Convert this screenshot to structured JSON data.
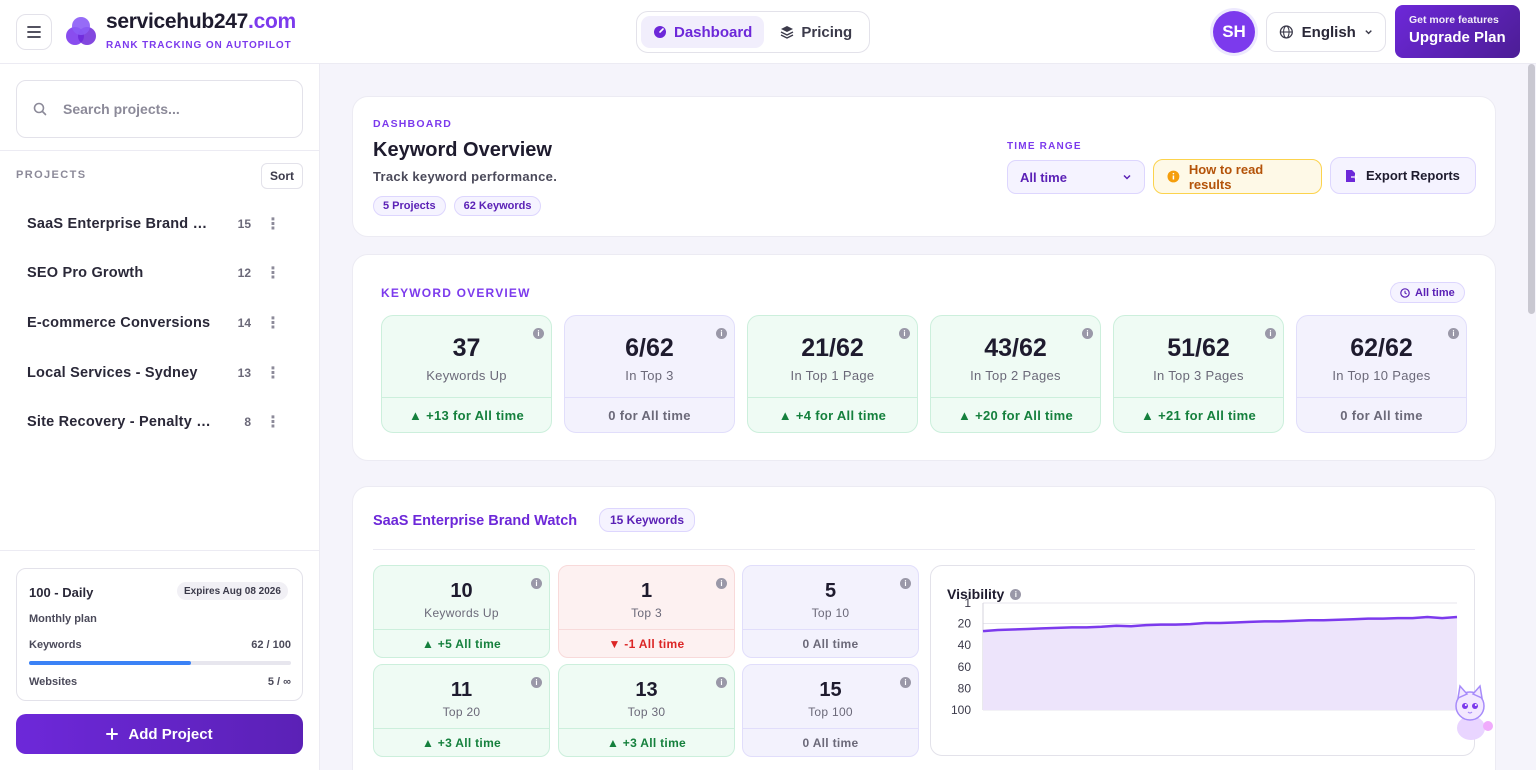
{
  "header": {
    "brand_main": "servicehub247",
    "brand_tld": ".com",
    "tagline": "RANK TRACKING ON AUTOPILOT",
    "nav": [
      {
        "label": "Dashboard",
        "icon": "dashboard-icon",
        "active": true
      },
      {
        "label": "Pricing",
        "icon": "layers-icon",
        "active": false
      }
    ],
    "avatar_initials": "SH",
    "language": "English",
    "upgrade_small": "Get more features",
    "upgrade_big": "Upgrade Plan"
  },
  "sidebar": {
    "search_placeholder": "Search projects...",
    "projects_label": "PROJECTS",
    "sort_label": "Sort",
    "projects": [
      {
        "name": "SaaS Enterprise Brand Watch",
        "count": "15"
      },
      {
        "name": "SEO Pro Growth",
        "count": "12"
      },
      {
        "name": "E-commerce Conversions",
        "count": "14"
      },
      {
        "name": "Local Services - Sydney",
        "count": "13"
      },
      {
        "name": "Site Recovery - Penalty Fix",
        "count": "8"
      }
    ],
    "plan": {
      "title": "100 - Daily",
      "expiry": "Expires Aug 08 2026",
      "subtitle": "Monthly plan",
      "keywords_label": "Keywords",
      "keywords_value": "62 / 100",
      "keywords_fraction": 0.62,
      "websites_label": "Websites",
      "websites_value": "5 / ∞"
    },
    "add_project": "Add Project"
  },
  "overview_header": {
    "eyebrow": "DASHBOARD",
    "title": "Keyword Overview",
    "subtitle": "Track keyword performance.",
    "chips": [
      "5 Projects",
      "62 Keywords"
    ],
    "time_range_label": "TIME RANGE",
    "time_range_value": "All time",
    "how_to": "How to read results",
    "export": "Export Reports"
  },
  "keyword_overview": {
    "title": "KEYWORD OVERVIEW",
    "badge": "All time",
    "stats": [
      {
        "value": "37",
        "label": "Keywords Up",
        "foot": "▲ +13 for All time",
        "tone": "green"
      },
      {
        "value": "6/62",
        "label": "In Top 3",
        "foot": "0 for All time",
        "tone": "purple"
      },
      {
        "value": "21/62",
        "label": "In Top 1 Page",
        "foot": "▲ +4 for All time",
        "tone": "green"
      },
      {
        "value": "43/62",
        "label": "In Top 2 Pages",
        "foot": "▲ +20 for All time",
        "tone": "green"
      },
      {
        "value": "51/62",
        "label": "In Top 3 Pages",
        "foot": "▲ +21 for All time",
        "tone": "green"
      },
      {
        "value": "62/62",
        "label": "In Top 10 Pages",
        "foot": "0 for All time",
        "tone": "purple"
      }
    ]
  },
  "project_card": {
    "title": "SaaS Enterprise Brand Watch",
    "chip": "15 Keywords",
    "stats": [
      {
        "value": "10",
        "label": "Keywords Up",
        "foot": "▲ +5 All time",
        "tone": "green"
      },
      {
        "value": "1",
        "label": "Top 3",
        "foot": "▼ -1 All time",
        "tone": "red"
      },
      {
        "value": "5",
        "label": "Top 10",
        "foot": "0 All time",
        "tone": "purple"
      },
      {
        "value": "11",
        "label": "Top 20",
        "foot": "▲ +3 All time",
        "tone": "green"
      },
      {
        "value": "13",
        "label": "Top 30",
        "foot": "▲ +3 All time",
        "tone": "green"
      },
      {
        "value": "15",
        "label": "Top 100",
        "foot": "0 All time",
        "tone": "purple"
      }
    ],
    "visibility_title": "Visibility"
  },
  "chart_data": {
    "type": "area",
    "title": "Visibility",
    "xlabel": "",
    "ylabel": "",
    "y_ticks": [
      "1",
      "20",
      "40",
      "60",
      "80",
      "100"
    ],
    "ylim": [
      1,
      100
    ],
    "y_inverted": true,
    "grid": true,
    "series": [
      {
        "values": [
          27,
          26,
          25.5,
          25,
          24.5,
          24,
          23.5,
          23.5,
          23,
          22,
          22.5,
          21.5,
          21,
          21,
          20.5,
          19.5,
          19.5,
          19,
          18.5,
          18,
          18,
          17.5,
          17,
          17,
          16.5,
          16,
          15.5,
          15.5,
          15,
          15,
          14,
          15,
          14
        ]
      }
    ],
    "color": "#7c3aed"
  }
}
